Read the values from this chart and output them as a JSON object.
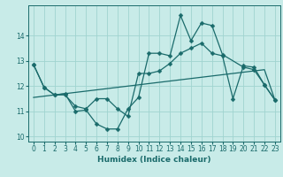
{
  "xlabel": "Humidex (Indice chaleur)",
  "bg_color": "#c8ebe8",
  "grid_color": "#a0d4d0",
  "line_color": "#1a6b6b",
  "xlim": [
    -0.5,
    23.5
  ],
  "ylim": [
    9.8,
    15.2
  ],
  "yticks": [
    10,
    11,
    12,
    13,
    14
  ],
  "xticks": [
    0,
    1,
    2,
    3,
    4,
    5,
    6,
    7,
    8,
    9,
    10,
    11,
    12,
    13,
    14,
    15,
    16,
    17,
    18,
    19,
    20,
    21,
    22,
    23
  ],
  "line1_y": [
    12.85,
    11.95,
    11.65,
    11.7,
    11.0,
    11.05,
    10.5,
    10.3,
    10.3,
    11.1,
    11.55,
    13.3,
    13.3,
    13.2,
    14.8,
    13.8,
    14.5,
    14.4,
    13.25,
    null,
    12.75,
    12.65,
    12.05,
    11.45
  ],
  "line2_y": [
    12.85,
    11.95,
    11.65,
    11.65,
    11.2,
    11.1,
    11.5,
    11.5,
    11.1,
    10.8,
    12.5,
    12.5,
    12.6,
    12.9,
    13.3,
    13.5,
    13.7,
    13.3,
    13.2,
    11.5,
    12.8,
    12.75,
    12.05,
    11.45
  ],
  "line3_y": [
    11.55,
    11.6,
    11.65,
    11.7,
    11.75,
    11.8,
    11.85,
    11.9,
    11.95,
    12.0,
    12.05,
    12.1,
    12.15,
    12.2,
    12.25,
    12.3,
    12.35,
    12.4,
    12.45,
    12.5,
    12.55,
    12.6,
    12.65,
    11.45
  ]
}
